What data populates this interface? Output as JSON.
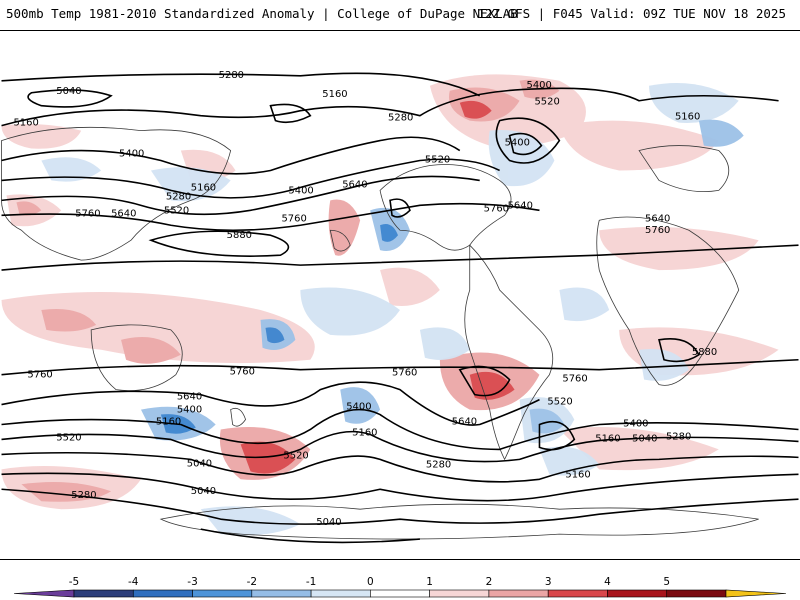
{
  "header": {
    "title_left": "500mb Temp 1981-2010 Standardized Anomaly | College of DuPage NEXLAB",
    "title_right": "12Z GFS | F045 Valid: 09Z TUE NOV 18 2025"
  },
  "colorbar": {
    "ticks": [
      "-5",
      "-4",
      "-3",
      "-2",
      "-1",
      "0",
      "1",
      "2",
      "3",
      "4",
      "5"
    ],
    "colors": [
      "#6a3d9a",
      "#2c3e7a",
      "#2f6fbf",
      "#4d94d9",
      "#95bde6",
      "#d6e6f4",
      "#ffffff",
      "#f6d6d6",
      "#eba5a5",
      "#d9474b",
      "#a8141c",
      "#7a0a10",
      "#f3c318"
    ]
  },
  "contour_labels": [
    "5280",
    "5160",
    "5040",
    "5400",
    "5520",
    "5640",
    "5760",
    "5880"
  ],
  "colors": {
    "warm_light": "#f6d3d3",
    "warm_mid": "#eba7a7",
    "warm_strong": "#d9474b",
    "cool_light": "#d3e3f3",
    "cool_mid": "#9cc1e7",
    "cool_strong": "#3b84cf",
    "contour": "#000000",
    "coast": "#3a3a3a"
  }
}
